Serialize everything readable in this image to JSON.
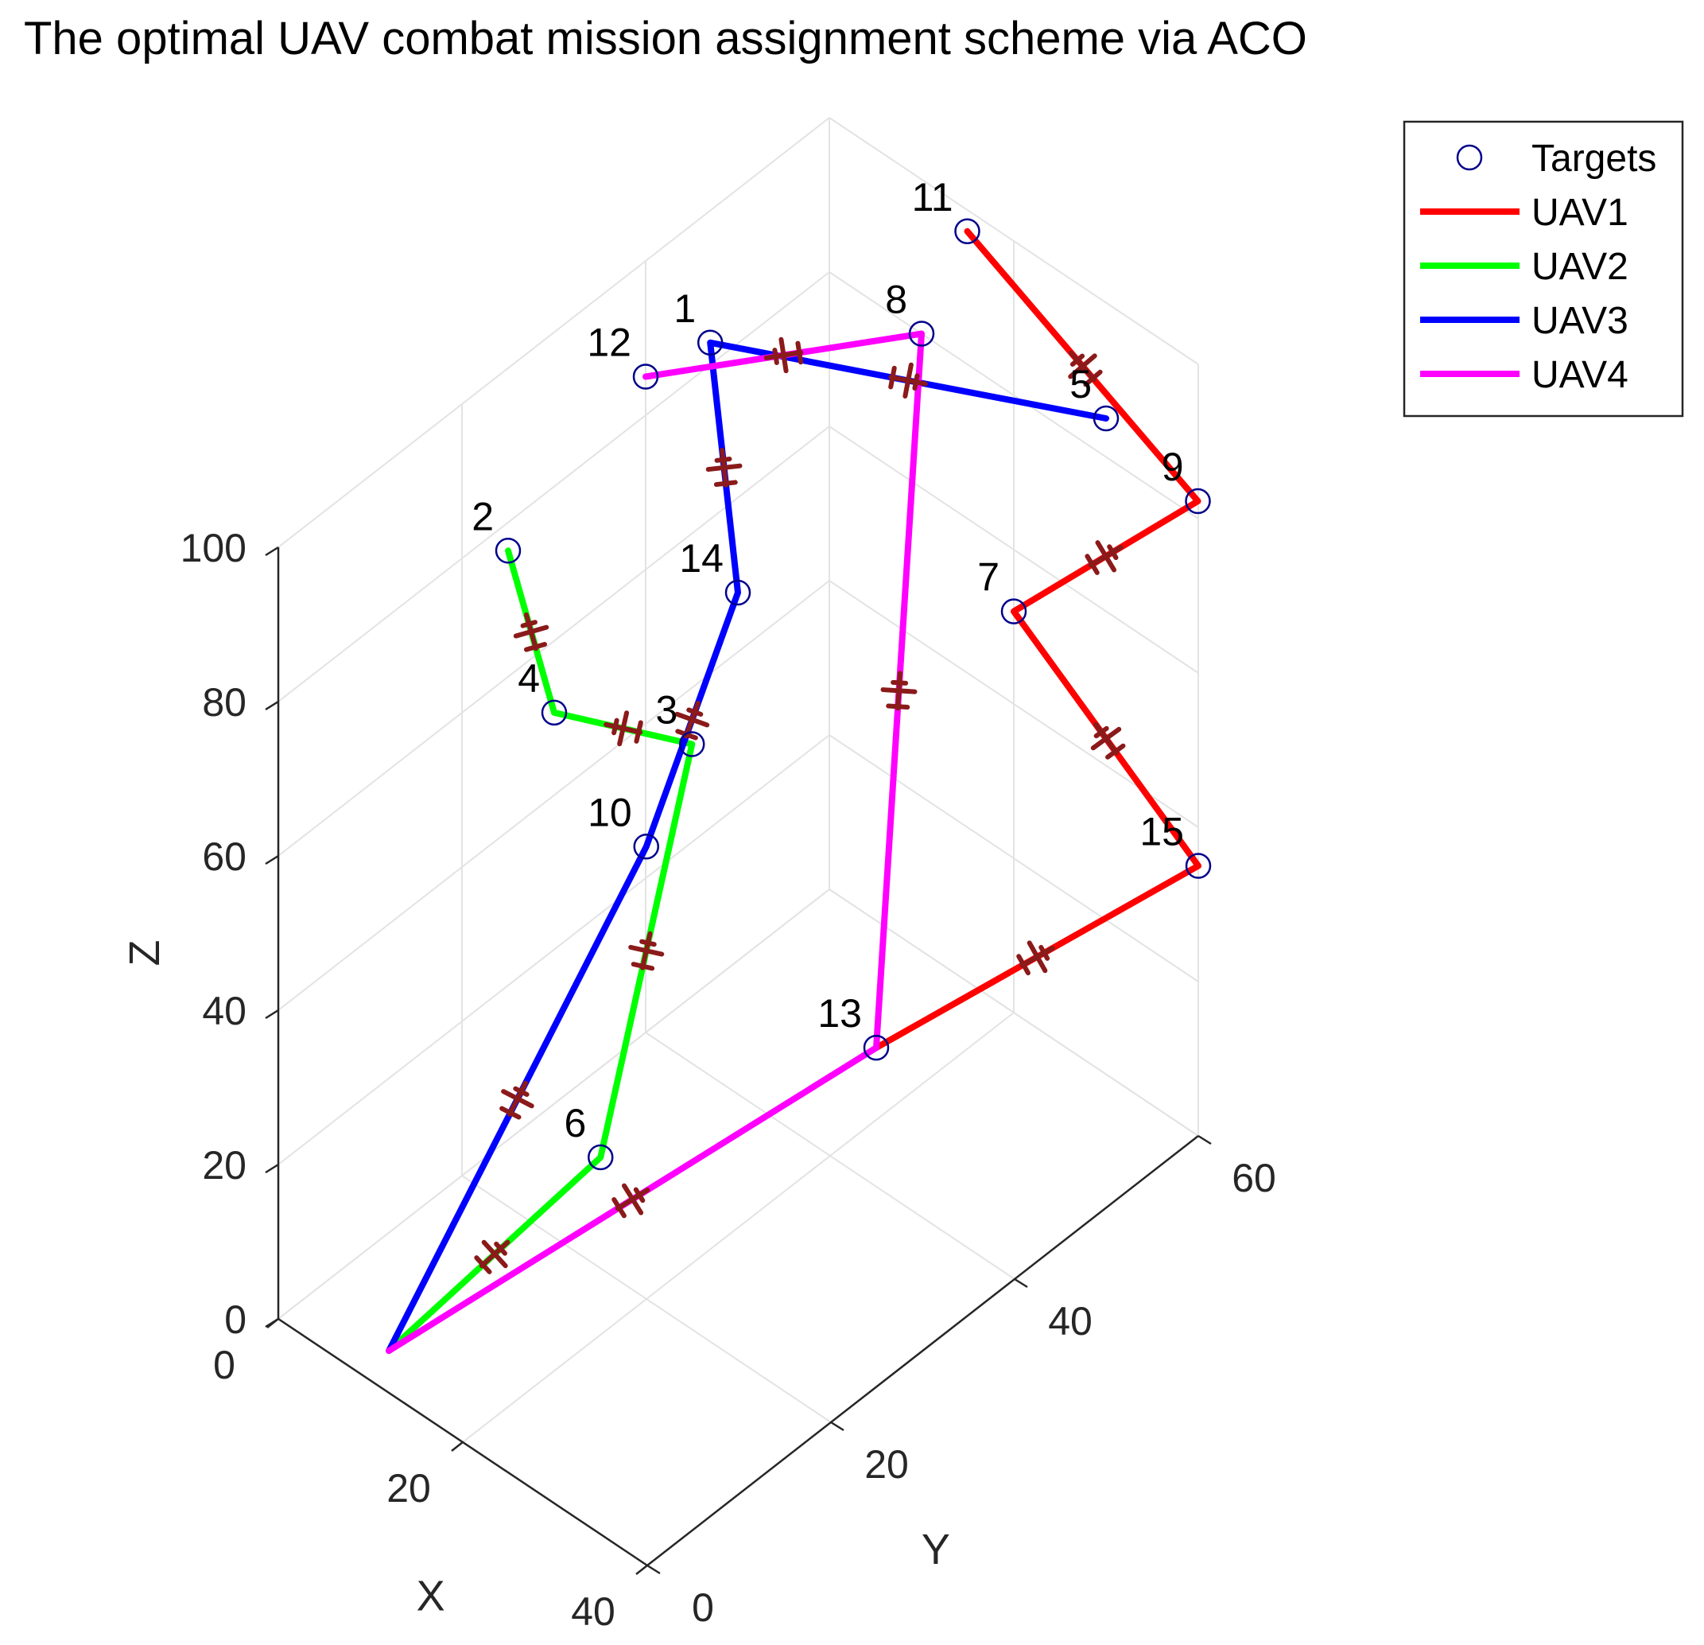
{
  "chart_data": {
    "type": "3d-line",
    "title": "The optimal UAV combat mission assignment scheme via ACO",
    "xlabel": "X",
    "ylabel": "Y",
    "zlabel": "Z",
    "xlim": [
      0,
      40
    ],
    "ylim": [
      0,
      60
    ],
    "zlim": [
      0,
      100
    ],
    "x_ticks": [
      "0",
      "20",
      "40"
    ],
    "y_ticks": [
      "0",
      "20",
      "40",
      "60"
    ],
    "z_ticks": [
      "0",
      "20",
      "40",
      "60",
      "80",
      "100"
    ],
    "grid": true,
    "legend_position": "top-right",
    "legend": [
      {
        "name": "Targets",
        "kind": "marker",
        "color": "#00008B"
      },
      {
        "name": "UAV1",
        "kind": "line",
        "color": "#FF0000"
      },
      {
        "name": "UAV2",
        "kind": "line",
        "color": "#00FF00"
      },
      {
        "name": "UAV3",
        "kind": "line",
        "color": "#0000FF"
      },
      {
        "name": "UAV4",
        "kind": "line",
        "color": "#FF00FF"
      }
    ],
    "origin": [
      10,
      2,
      2
    ],
    "targets": [
      {
        "id": "1",
        "x": 7,
        "y": 40,
        "z": 95
      },
      {
        "id": "2",
        "x": 5,
        "y": 20,
        "z": 85
      },
      {
        "id": "3",
        "x": 10,
        "y": 35,
        "z": 50
      },
      {
        "id": "4",
        "x": 10,
        "y": 20,
        "z": 68
      },
      {
        "id": "5",
        "x": 30,
        "y": 60,
        "z": 85
      },
      {
        "id": "6",
        "x": 20,
        "y": 15,
        "z": 23
      },
      {
        "id": "7",
        "x": 20,
        "y": 60,
        "z": 52
      },
      {
        "id": "8",
        "x": 10,
        "y": 60,
        "z": 80
      },
      {
        "id": "9",
        "x": 30,
        "y": 70,
        "z": 65
      },
      {
        "id": "10",
        "x": 15,
        "y": 25,
        "z": 50
      },
      {
        "id": "11",
        "x": 5,
        "y": 70,
        "z": 80
      },
      {
        "id": "12",
        "x": 0,
        "y": 40,
        "z": 85
      },
      {
        "id": "13",
        "x": 25,
        "y": 40,
        "z": 18
      },
      {
        "id": "14",
        "x": 10,
        "y": 40,
        "z": 65
      },
      {
        "id": "15",
        "x": 40,
        "y": 60,
        "z": 35
      }
    ],
    "series": [
      {
        "name": "UAV1",
        "color": "#FF0000",
        "route": [
          "13",
          "15",
          "7",
          "9",
          "11"
        ]
      },
      {
        "name": "UAV2",
        "color": "#00FF00",
        "route": [
          "6",
          "3",
          "4",
          "2"
        ]
      },
      {
        "name": "UAV3",
        "color": "#0000FF",
        "route": [
          "10",
          "14",
          "1",
          "5"
        ]
      },
      {
        "name": "UAV4",
        "color": "#FF00FF",
        "route": [
          "13",
          "8",
          "12"
        ]
      }
    ],
    "uav_marker_color": "#8B1A1A"
  }
}
